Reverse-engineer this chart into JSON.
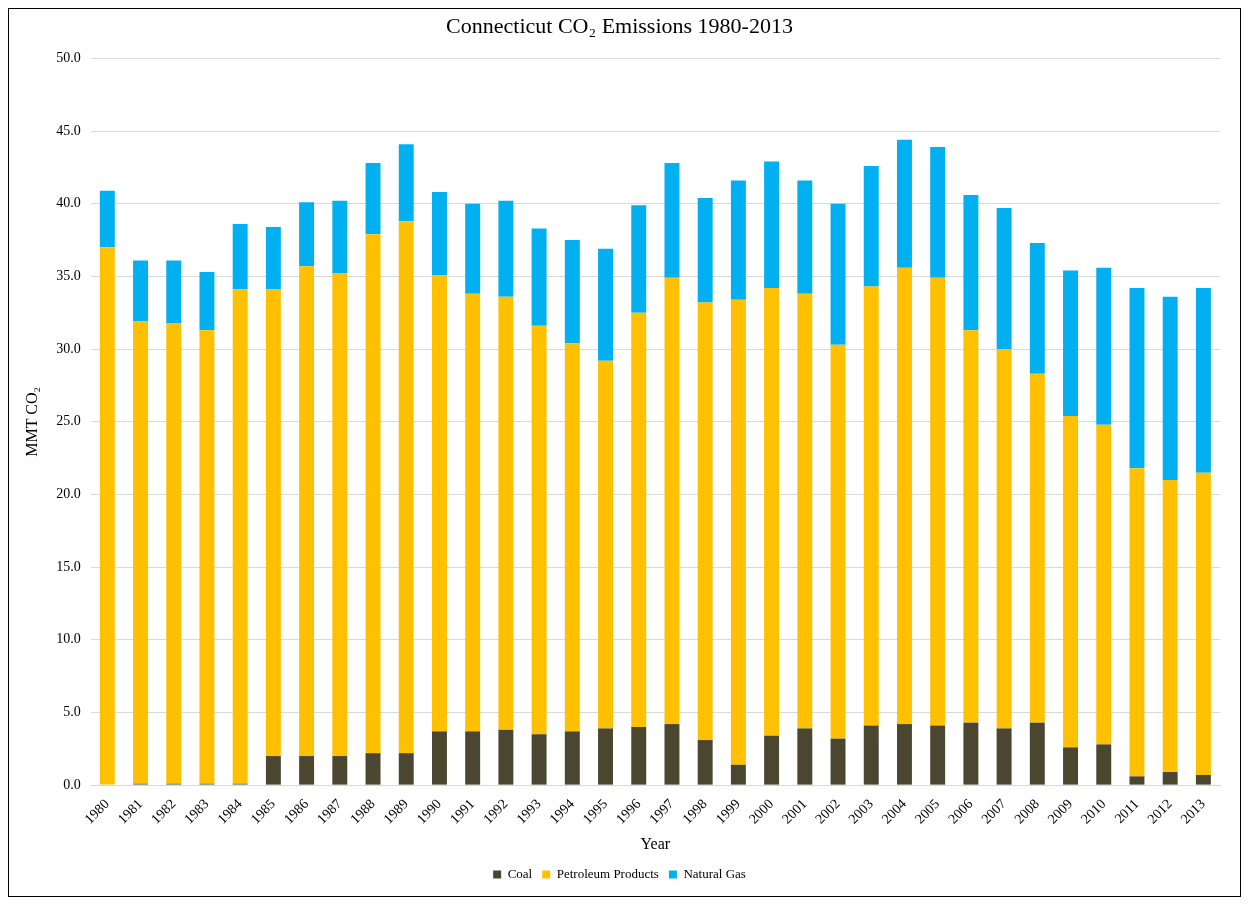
{
  "chart_data": {
    "type": "bar",
    "stacked": true,
    "title": "Connecticut CO₂ Emissions 1980-2013",
    "xlabel": "Year",
    "ylabel": "MMT CO₂",
    "categories": [
      "1980",
      "1981",
      "1982",
      "1983",
      "1984",
      "1985",
      "1986",
      "1987",
      "1988",
      "1989",
      "1990",
      "1991",
      "1992",
      "1993",
      "1994",
      "1995",
      "1996",
      "1997",
      "1998",
      "1999",
      "2000",
      "2001",
      "2002",
      "2003",
      "2004",
      "2005",
      "2006",
      "2007",
      "2008",
      "2009",
      "2010",
      "2011",
      "2012",
      "2013"
    ],
    "series": [
      {
        "name": "Coal",
        "color": "#4a4630",
        "values": [
          0,
          0.1,
          0.1,
          0.1,
          0.1,
          2.0,
          2.0,
          2.0,
          2.2,
          2.2,
          3.7,
          3.7,
          3.8,
          3.5,
          3.7,
          3.9,
          4.0,
          4.2,
          3.1,
          1.4,
          3.4,
          3.9,
          3.2,
          4.1,
          4.2,
          4.1,
          4.3,
          3.9,
          4.3,
          2.6,
          2.8,
          0.6,
          0.9,
          0.7
        ]
      },
      {
        "name": "Petroleum Products",
        "color": "#ffc000",
        "values": [
          37.0,
          31.8,
          31.7,
          31.2,
          34.0,
          32.1,
          33.7,
          33.2,
          35.7,
          36.6,
          31.4,
          30.1,
          29.8,
          28.1,
          26.7,
          25.3,
          28.5,
          30.7,
          30.1,
          32.0,
          30.8,
          29.9,
          27.1,
          30.2,
          31.4,
          30.8,
          27.0,
          26.1,
          24.0,
          22.8,
          22.0,
          21.2,
          20.1,
          20.8
        ]
      },
      {
        "name": "Natural Gas",
        "color": "#00b0f0",
        "values": [
          3.9,
          4.2,
          4.3,
          4.0,
          4.5,
          4.3,
          4.4,
          5.0,
          4.9,
          5.3,
          5.7,
          6.2,
          6.6,
          6.7,
          7.1,
          7.7,
          7.4,
          7.9,
          7.2,
          8.2,
          8.7,
          7.8,
          9.7,
          8.3,
          8.8,
          9.0,
          9.3,
          9.7,
          9.0,
          10.0,
          10.8,
          12.4,
          12.6,
          12.7
        ]
      }
    ],
    "ylim": [
      0,
      50
    ],
    "yticks": [
      {
        "value": 0,
        "label": "0.0"
      },
      {
        "value": 5,
        "label": "5.0"
      },
      {
        "value": 10,
        "label": "10.0"
      },
      {
        "value": 15,
        "label": "15.0"
      },
      {
        "value": 20,
        "label": "20.0"
      },
      {
        "value": 25,
        "label": "25.0"
      },
      {
        "value": 30,
        "label": "30.0"
      },
      {
        "value": 35,
        "label": "35.0"
      },
      {
        "value": 40,
        "label": "40.0"
      },
      {
        "value": 45,
        "label": "45.0"
      },
      {
        "value": 50,
        "label": "50.0"
      }
    ],
    "grid": "y",
    "legend": "bottom"
  }
}
